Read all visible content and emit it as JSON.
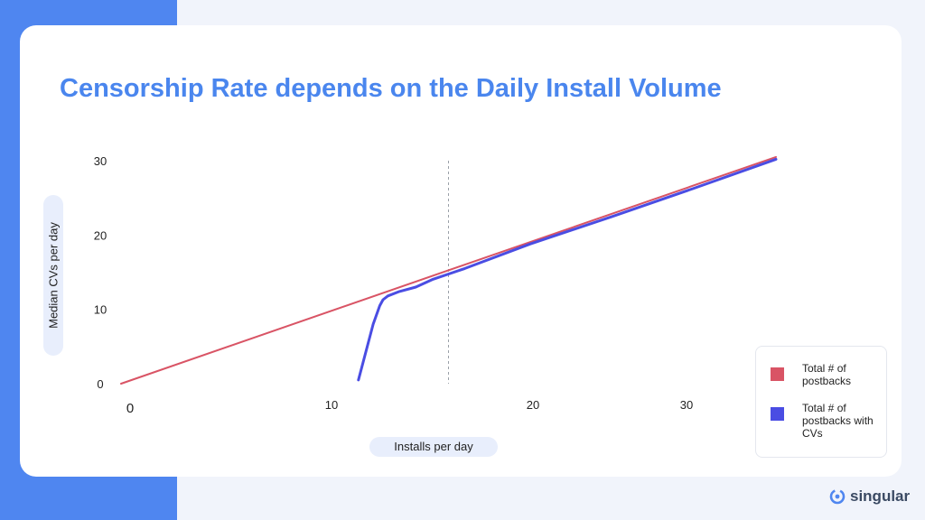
{
  "page": {
    "title": "Censorship Rate depends on the Daily Install Volume",
    "brand": "singular",
    "brand_icon": "singular-logo-icon",
    "colors": {
      "background": "#f1f4fb",
      "left_band": "#4f86f0",
      "card": "#ffffff",
      "title": "#4a86ee"
    }
  },
  "chart_data": {
    "type": "line",
    "xlabel": "Installs per day",
    "ylabel": "Median CVs per day",
    "xlim": [
      0,
      40
    ],
    "ylim": [
      0,
      30
    ],
    "x_ticks": [
      {
        "value": 0,
        "label": "0"
      },
      {
        "value": 10,
        "label": "10"
      },
      {
        "value": 20,
        "label": "20"
      },
      {
        "value": 30,
        "label": "30"
      }
    ],
    "y_ticks": [
      {
        "value": 0,
        "label": "0"
      },
      {
        "value": 10,
        "label": "10"
      },
      {
        "value": 20,
        "label": "20"
      },
      {
        "value": 30,
        "label": "30"
      }
    ],
    "threshold_x": 20,
    "grid": false,
    "legend_position": "bottom-right",
    "series": [
      {
        "name": "Total # of postbacks",
        "color": "#d95465",
        "x": [
          0,
          40
        ],
        "y": [
          0,
          30.5
        ]
      },
      {
        "name": "Total # of postbacks with CVs",
        "color": "#4a4de3",
        "x": [
          14.5,
          15.4,
          15.8,
          16.0,
          16.3,
          17.0,
          18.0,
          19.0,
          21.0,
          25.0,
          30.0,
          35.0,
          40.0
        ],
        "y": [
          0.5,
          8.0,
          10.5,
          11.3,
          11.8,
          12.4,
          13.0,
          14.0,
          15.5,
          18.8,
          22.5,
          26.3,
          30.2
        ]
      }
    ]
  }
}
